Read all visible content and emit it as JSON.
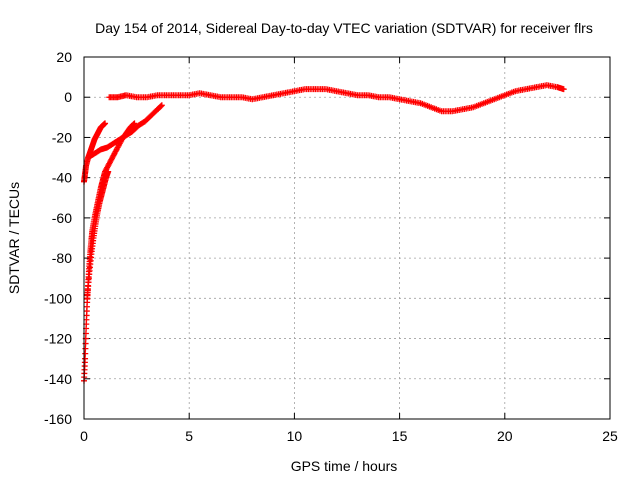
{
  "chart_data": {
    "type": "scatter",
    "title": "Day 154 of 2014, Sidereal Day-to-day VTEC variation (SDTVAR) for receiver flrs",
    "xlabel": "GPS time / hours",
    "ylabel": "SDTVAR / TECUs",
    "xlim": [
      0,
      25
    ],
    "ylim": [
      -160,
      20
    ],
    "xticks": [
      0,
      5,
      10,
      15,
      20,
      25
    ],
    "yticks": [
      -160,
      -140,
      -120,
      -100,
      -80,
      -60,
      -40,
      -20,
      0,
      20
    ],
    "grid": true,
    "marker": "plus",
    "color": "#ff0000",
    "series": [
      {
        "points": [
          [
            0.0,
            -141
          ],
          [
            0.05,
            -130
          ],
          [
            0.1,
            -115
          ],
          [
            0.15,
            -102
          ],
          [
            0.2,
            -92
          ],
          [
            0.25,
            -84
          ],
          [
            0.3,
            -77
          ],
          [
            0.35,
            -71
          ],
          [
            0.4,
            -66
          ],
          [
            0.5,
            -60
          ],
          [
            0.6,
            -55
          ],
          [
            0.7,
            -50
          ],
          [
            0.8,
            -45
          ],
          [
            0.9,
            -41
          ],
          [
            1.0,
            -37
          ],
          [
            1.2,
            -33
          ],
          [
            1.4,
            -29
          ],
          [
            1.6,
            -25
          ],
          [
            1.8,
            -21
          ],
          [
            2.0,
            -18
          ],
          [
            2.2,
            -15
          ],
          [
            2.4,
            -13
          ]
        ]
      },
      {
        "points": [
          [
            0.15,
            -100
          ],
          [
            0.25,
            -88
          ],
          [
            0.35,
            -78
          ],
          [
            0.45,
            -70
          ],
          [
            0.55,
            -63
          ],
          [
            0.65,
            -57
          ],
          [
            0.75,
            -52
          ],
          [
            0.85,
            -48
          ],
          [
            0.95,
            -44
          ],
          [
            1.05,
            -40
          ],
          [
            1.15,
            -37
          ]
        ]
      },
      {
        "points": [
          [
            0.0,
            -42
          ],
          [
            0.05,
            -38
          ],
          [
            0.1,
            -34
          ],
          [
            0.2,
            -30
          ],
          [
            0.3,
            -27
          ],
          [
            0.4,
            -24
          ],
          [
            0.5,
            -21
          ],
          [
            0.6,
            -19
          ],
          [
            0.7,
            -17
          ],
          [
            0.8,
            -15
          ],
          [
            0.9,
            -14
          ],
          [
            1.0,
            -13
          ]
        ]
      },
      {
        "points": [
          [
            0.2,
            -30
          ],
          [
            0.5,
            -28
          ],
          [
            0.8,
            -26
          ],
          [
            1.1,
            -25
          ],
          [
            1.4,
            -23
          ],
          [
            1.7,
            -21
          ],
          [
            2.0,
            -19
          ],
          [
            2.3,
            -17
          ],
          [
            2.6,
            -14
          ],
          [
            2.9,
            -12
          ],
          [
            3.2,
            -9
          ],
          [
            3.5,
            -6
          ],
          [
            3.7,
            -4
          ]
        ]
      },
      {
        "points": [
          [
            1.2,
            0
          ],
          [
            1.6,
            0
          ],
          [
            2.0,
            1
          ],
          [
            2.5,
            0
          ],
          [
            3.0,
            0
          ],
          [
            3.5,
            1
          ],
          [
            4.0,
            1
          ],
          [
            4.5,
            1
          ],
          [
            5.0,
            1
          ],
          [
            5.5,
            2
          ],
          [
            6.0,
            1
          ],
          [
            6.5,
            0
          ],
          [
            7.0,
            0
          ],
          [
            7.5,
            0
          ],
          [
            8.0,
            -1
          ],
          [
            8.5,
            0
          ],
          [
            9.0,
            1
          ],
          [
            9.5,
            2
          ],
          [
            10.0,
            3
          ],
          [
            10.5,
            4
          ],
          [
            11.0,
            4
          ],
          [
            11.5,
            4
          ],
          [
            12.0,
            3
          ],
          [
            12.5,
            2
          ],
          [
            13.0,
            1
          ],
          [
            13.5,
            1
          ],
          [
            14.0,
            0
          ],
          [
            14.5,
            0
          ],
          [
            15.0,
            -1
          ],
          [
            15.5,
            -2
          ],
          [
            16.0,
            -3
          ],
          [
            16.5,
            -5
          ],
          [
            17.0,
            -7
          ],
          [
            17.5,
            -7
          ],
          [
            18.0,
            -6
          ],
          [
            18.5,
            -5
          ],
          [
            19.0,
            -3
          ],
          [
            19.5,
            -1
          ],
          [
            20.0,
            1
          ],
          [
            20.5,
            3
          ],
          [
            21.0,
            4
          ],
          [
            21.5,
            5
          ],
          [
            22.0,
            6
          ],
          [
            22.5,
            5
          ],
          [
            22.8,
            4
          ]
        ]
      }
    ]
  }
}
